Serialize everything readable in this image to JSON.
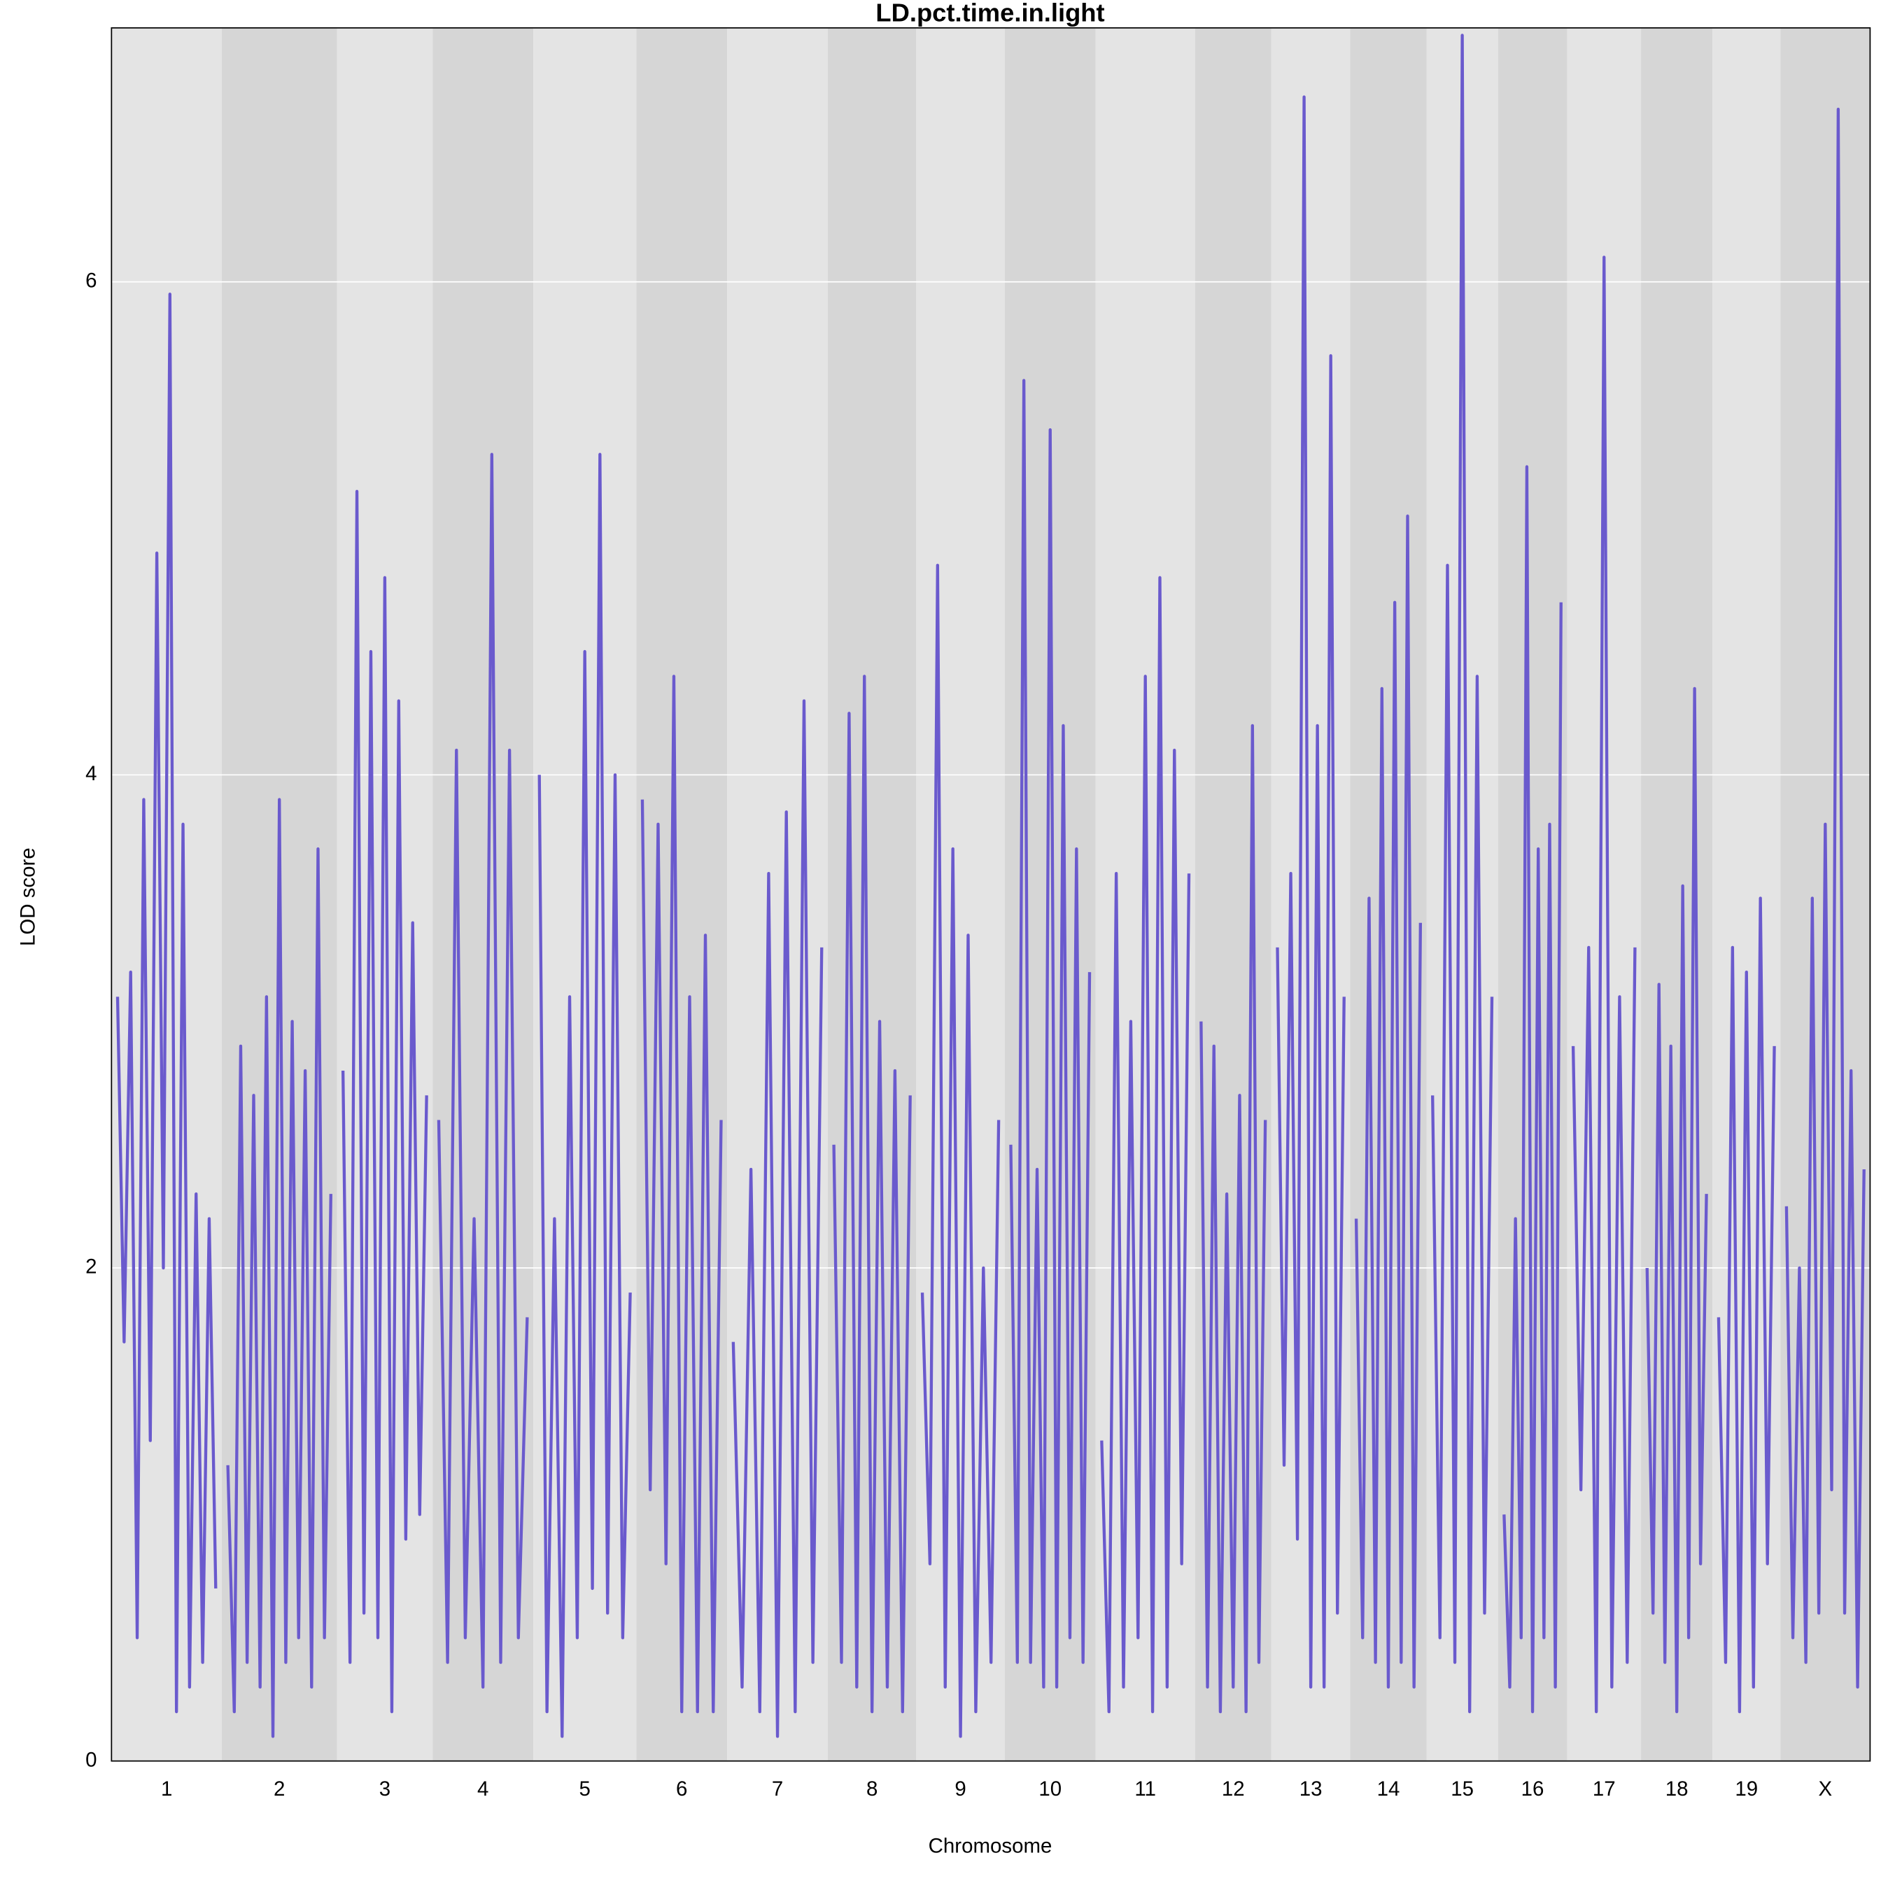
{
  "chart_data": {
    "type": "line",
    "title": "LD.pct.time.in.light",
    "xlabel": "Chromosome",
    "ylabel": "LOD score",
    "color": "#6a5acd",
    "ylim": [
      0,
      7.03
    ],
    "yticks": [
      0,
      2,
      4,
      6
    ],
    "grid": true,
    "chromosomes": [
      {
        "name": "1",
        "values": [
          3.1,
          1.7,
          3.2,
          0.5,
          3.9,
          1.3,
          4.9,
          2.0,
          5.95,
          0.2,
          3.8,
          0.3,
          2.3,
          0.4,
          2.2,
          0.7
        ]
      },
      {
        "name": "2",
        "values": [
          1.2,
          0.2,
          2.9,
          0.4,
          2.7,
          0.3,
          3.1,
          0.1,
          3.9,
          0.4,
          3.0,
          0.5,
          2.8,
          0.3,
          3.7,
          0.5,
          2.3
        ]
      },
      {
        "name": "3",
        "values": [
          2.8,
          0.4,
          5.15,
          0.6,
          4.5,
          0.5,
          4.8,
          0.2,
          4.3,
          0.9,
          3.4,
          1.0,
          2.7
        ]
      },
      {
        "name": "4",
        "values": [
          2.6,
          0.4,
          4.1,
          0.5,
          2.2,
          0.3,
          5.3,
          0.4,
          4.1,
          0.5,
          1.8
        ]
      },
      {
        "name": "5",
        "values": [
          4.0,
          0.2,
          2.2,
          0.1,
          3.1,
          0.5,
          4.5,
          0.7,
          5.3,
          0.6,
          4.0,
          0.5,
          1.9
        ]
      },
      {
        "name": "6",
        "values": [
          3.9,
          1.1,
          3.8,
          0.8,
          4.4,
          0.2,
          3.1,
          0.2,
          3.35,
          0.2,
          2.6
        ]
      },
      {
        "name": "7",
        "values": [
          1.7,
          0.3,
          2.4,
          0.2,
          3.6,
          0.1,
          3.85,
          0.2,
          4.3,
          0.4,
          3.3
        ]
      },
      {
        "name": "8",
        "values": [
          2.5,
          0.4,
          4.25,
          0.3,
          4.4,
          0.2,
          3.0,
          0.3,
          2.8,
          0.2,
          2.7
        ]
      },
      {
        "name": "9",
        "values": [
          1.9,
          0.8,
          4.85,
          0.3,
          3.7,
          0.1,
          3.35,
          0.2,
          2.0,
          0.4,
          2.6
        ]
      },
      {
        "name": "10",
        "values": [
          2.5,
          0.4,
          5.6,
          0.4,
          2.4,
          0.3,
          5.4,
          0.3,
          4.2,
          0.5,
          3.7,
          0.4,
          3.2
        ]
      },
      {
        "name": "11",
        "values": [
          1.3,
          0.2,
          3.6,
          0.3,
          3.0,
          0.5,
          4.4,
          0.2,
          4.8,
          0.3,
          4.1,
          0.8,
          3.6
        ]
      },
      {
        "name": "12",
        "values": [
          3.0,
          0.3,
          2.9,
          0.2,
          2.3,
          0.3,
          2.7,
          0.2,
          4.2,
          0.4,
          2.6
        ]
      },
      {
        "name": "13",
        "values": [
          3.3,
          1.2,
          3.6,
          0.9,
          6.75,
          0.3,
          4.2,
          0.3,
          5.7,
          0.6,
          3.1
        ]
      },
      {
        "name": "14",
        "values": [
          2.2,
          0.5,
          3.5,
          0.4,
          4.35,
          0.3,
          4.7,
          0.4,
          5.05,
          0.3,
          3.4
        ]
      },
      {
        "name": "15",
        "values": [
          2.7,
          0.5,
          4.85,
          0.4,
          7.0,
          0.2,
          4.4,
          0.6,
          3.1
        ]
      },
      {
        "name": "16",
        "values": [
          1.0,
          0.3,
          2.2,
          0.5,
          5.25,
          0.2,
          3.7,
          0.5,
          3.8,
          0.3,
          4.7
        ]
      },
      {
        "name": "17",
        "values": [
          2.9,
          1.1,
          3.3,
          0.2,
          6.1,
          0.3,
          3.1,
          0.4,
          3.3
        ]
      },
      {
        "name": "18",
        "values": [
          2.0,
          0.6,
          3.15,
          0.4,
          2.9,
          0.2,
          3.55,
          0.5,
          4.35,
          0.8,
          2.3
        ]
      },
      {
        "name": "19",
        "values": [
          1.8,
          0.4,
          3.3,
          0.2,
          3.2,
          0.3,
          3.5,
          0.8,
          2.9
        ]
      },
      {
        "name": "X",
        "values": [
          2.25,
          0.5,
          2.0,
          0.4,
          3.5,
          0.6,
          3.8,
          1.1,
          6.7,
          0.6,
          2.8,
          0.3,
          2.4
        ]
      }
    ]
  }
}
